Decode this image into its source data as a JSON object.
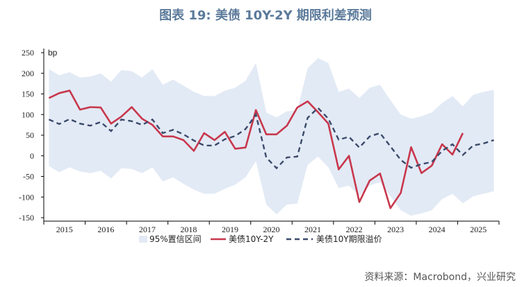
{
  "title": "图表 19: 美债 10Y-2Y 期限利差预测",
  "source": "资料来源：Macrobond，兴业研究",
  "colors": {
    "band": "#e2eaf5",
    "spread": "#c8374c",
    "model": "#3b4a6b",
    "title": "#5b7a9a"
  },
  "chart_data": {
    "type": "line",
    "unit": "bp",
    "ylim": [
      -150,
      250
    ],
    "yticks": [
      250,
      200,
      150,
      100,
      50,
      0,
      -50,
      -100,
      -150
    ],
    "years": [
      "2015",
      "2016",
      "2017",
      "2018",
      "2019",
      "2020",
      "2021",
      "2022",
      "2023",
      "2024",
      "2025"
    ],
    "x": [
      "2015Q1",
      "2015Q2",
      "2015Q3",
      "2015Q4",
      "2016Q1",
      "2016Q2",
      "2016Q3",
      "2016Q4",
      "2017Q1",
      "2017Q2",
      "2017Q3",
      "2017Q4",
      "2018Q1",
      "2018Q2",
      "2018Q3",
      "2018Q4",
      "2019Q1",
      "2019Q2",
      "2019Q3",
      "2019Q4",
      "2020Q1",
      "2020Q2",
      "2020Q3",
      "2020Q4",
      "2021Q1",
      "2021Q2",
      "2021Q3",
      "2021Q4",
      "2022Q1",
      "2022Q2",
      "2022Q3",
      "2022Q4",
      "2023Q1",
      "2023Q2",
      "2023Q3",
      "2023Q4",
      "2024Q1",
      "2024Q2",
      "2024Q3",
      "2024Q4",
      "2025Q1",
      "2025Q2",
      "2025Q3",
      "2025Q4"
    ],
    "legend": [
      "95%置信区间",
      "美债10Y-2Y",
      "美债10Y期限溢价"
    ],
    "series": [
      {
        "name": "美债10Y-2Y",
        "style": "solid",
        "values": [
          140,
          152,
          158,
          112,
          118,
          117,
          78,
          95,
          118,
          90,
          75,
          47,
          47,
          38,
          12,
          55,
          38,
          58,
          17,
          20,
          111,
          52,
          52,
          73,
          117,
          132,
          106,
          78,
          -33,
          0,
          -112,
          -60,
          -43,
          -127,
          -90,
          21,
          -42,
          -24,
          28,
          3,
          55,
          null,
          null,
          null
        ]
      },
      {
        "name": "美债10Y期限溢价",
        "style": "dashed",
        "values": [
          88,
          77,
          89,
          78,
          73,
          82,
          60,
          88,
          84,
          75,
          88,
          55,
          63,
          52,
          37,
          25,
          25,
          40,
          48,
          65,
          100,
          -4,
          -30,
          -4,
          -2,
          92,
          116,
          90,
          39,
          46,
          20,
          47,
          55,
          23,
          -10,
          -29,
          -20,
          -15,
          12,
          28,
          2,
          25,
          30,
          38
        ]
      },
      {
        "name": "95%置信区间",
        "style": "band",
        "upper": [
          210,
          195,
          203,
          190,
          192,
          200,
          180,
          208,
          205,
          190,
          210,
          172,
          185,
          170,
          155,
          145,
          145,
          158,
          165,
          182,
          225,
          105,
          93,
          108,
          110,
          212,
          237,
          225,
          155,
          163,
          140,
          165,
          172,
          135,
          100,
          90,
          96,
          105,
          128,
          145,
          120,
          148,
          155,
          160
        ],
        "lower": [
          -25,
          -40,
          -28,
          -38,
          -42,
          -36,
          -55,
          -30,
          -32,
          -42,
          -28,
          -62,
          -52,
          -68,
          -82,
          -92,
          -92,
          -80,
          -70,
          -52,
          -13,
          -118,
          -142,
          -118,
          -116,
          -22,
          -2,
          -28,
          -78,
          -72,
          -97,
          -72,
          -64,
          -98,
          -132,
          -145,
          -140,
          -132,
          -105,
          -92,
          -115,
          -98,
          -92,
          -86
        ]
      }
    ]
  }
}
